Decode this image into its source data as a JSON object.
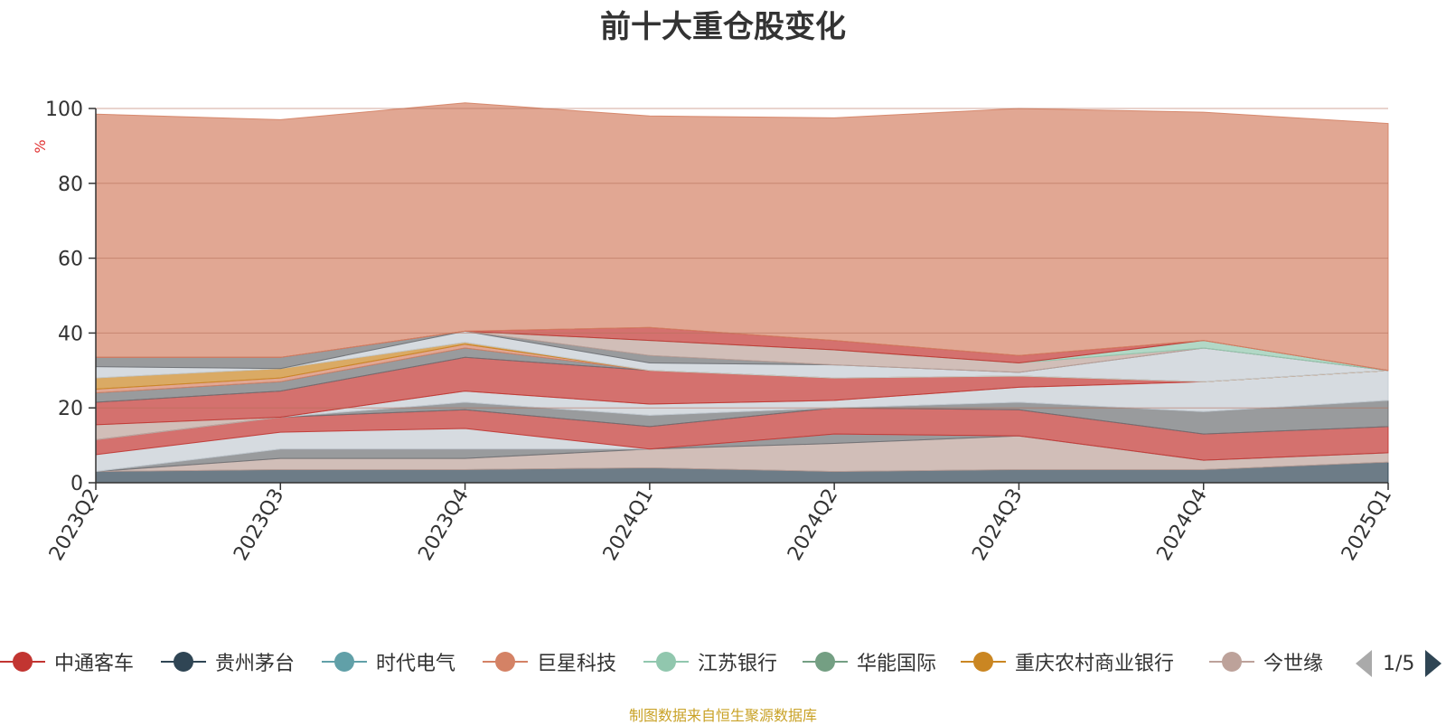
{
  "chart_data": {
    "type": "area",
    "stacked": true,
    "title": "前十大重仓股变化",
    "ylabel": "%",
    "ylim": [
      0,
      100
    ],
    "yticks": [
      0,
      20,
      40,
      60,
      80,
      100
    ],
    "grid": true,
    "categories": [
      "2023Q2",
      "2023Q3",
      "2023Q4",
      "2024Q1",
      "2024Q2",
      "2024Q3",
      "2024Q4",
      "2025Q1"
    ],
    "series": [
      {
        "name": "贵州茅台",
        "color": "#2f4554",
        "values": [
          3.0,
          3.5,
          3.5,
          4.0,
          3.0,
          3.5,
          3.5,
          5.5
        ]
      },
      {
        "name": "今世缘",
        "color": "#bda29a",
        "values": [
          0.0,
          3.0,
          3.0,
          5.0,
          7.5,
          9.0,
          2.5,
          2.5
        ]
      },
      {
        "name": "",
        "color": "#6e7074",
        "values": [
          0.0,
          2.5,
          2.5,
          0.0,
          2.5,
          0.0,
          0.0,
          0.0
        ]
      },
      {
        "name": "",
        "color": "#c4ccd3",
        "values": [
          4.5,
          4.5,
          5.5,
          0.0,
          0.0,
          0.0,
          0.0,
          0.0
        ]
      },
      {
        "name": "中通客车",
        "color": "#c23531",
        "values": [
          4.0,
          4.0,
          5.0,
          6.0,
          7.0,
          7.0,
          7.0,
          7.0
        ]
      },
      {
        "name": "",
        "color": "#6e7074",
        "values": [
          0.0,
          0.0,
          2.0,
          3.0,
          0.0,
          2.0,
          6.0,
          7.0
        ]
      },
      {
        "name": "",
        "color": "#c4ccd3",
        "values": [
          0.0,
          0.0,
          3.0,
          3.0,
          2.0,
          4.0,
          8.0,
          8.0
        ]
      },
      {
        "name": "",
        "color": "#bda29a",
        "values": [
          4.0,
          0.0,
          0.0,
          0.0,
          0.0,
          0.0,
          0.0,
          0.0
        ]
      },
      {
        "name": "",
        "color": "#c23531",
        "values": [
          6.0,
          7.0,
          9.0,
          9.0,
          6.0,
          3.0,
          0.0,
          0.0
        ]
      },
      {
        "name": "",
        "color": "#6e7074",
        "values": [
          2.5,
          2.5,
          2.5,
          0.0,
          0.0,
          0.0,
          0.0,
          0.0
        ]
      },
      {
        "name": "",
        "color": "#d48265",
        "values": [
          1.0,
          1.0,
          1.0,
          0.0,
          0.0,
          0.0,
          0.0,
          0.0
        ]
      },
      {
        "name": "",
        "color": "#ca8622",
        "values": [
          3.0,
          2.5,
          0.5,
          0.0,
          0.0,
          0.0,
          0.0,
          0.0
        ]
      },
      {
        "name": "",
        "color": "#c4ccd3",
        "values": [
          3.0,
          0.0,
          3.0,
          2.0,
          3.5,
          1.0,
          9.0,
          0.0
        ]
      },
      {
        "name": "",
        "color": "#6e7074",
        "values": [
          2.5,
          3.0,
          0.0,
          2.0,
          0.0,
          0.0,
          0.0,
          0.0
        ]
      },
      {
        "name": "",
        "color": "#bda29a",
        "values": [
          0.0,
          0.0,
          0.0,
          4.0,
          4.0,
          2.5,
          0.0,
          0.0
        ]
      },
      {
        "name": "",
        "color": "#91c7ae",
        "values": [
          0.0,
          0.0,
          0.0,
          0.0,
          0.0,
          0.0,
          2.0,
          0.0
        ]
      },
      {
        "name": "",
        "color": "#c23531",
        "values": [
          0.0,
          0.0,
          0.0,
          3.5,
          2.5,
          2.0,
          0.0,
          0.0
        ]
      },
      {
        "name": "",
        "color": "#d48265",
        "values": [
          65.0,
          63.5,
          61.0,
          56.5,
          59.5,
          66.0,
          61.0,
          66.0
        ]
      }
    ]
  },
  "legend": {
    "items": [
      {
        "label": "中通客车",
        "color": "#c23531"
      },
      {
        "label": "贵州茅台",
        "color": "#2f4554"
      },
      {
        "label": "时代电气",
        "color": "#61a0a8"
      },
      {
        "label": "巨星科技",
        "color": "#d48265"
      },
      {
        "label": "江苏银行",
        "color": "#91c7ae"
      },
      {
        "label": "华能国际",
        "color": "#749f83"
      },
      {
        "label": "重庆农村商业银行",
        "color": "#ca8622"
      },
      {
        "label": "今世缘",
        "color": "#bda29a"
      }
    ],
    "page": "1/5"
  },
  "source_note": "制图数据来自恒生聚源数据库"
}
